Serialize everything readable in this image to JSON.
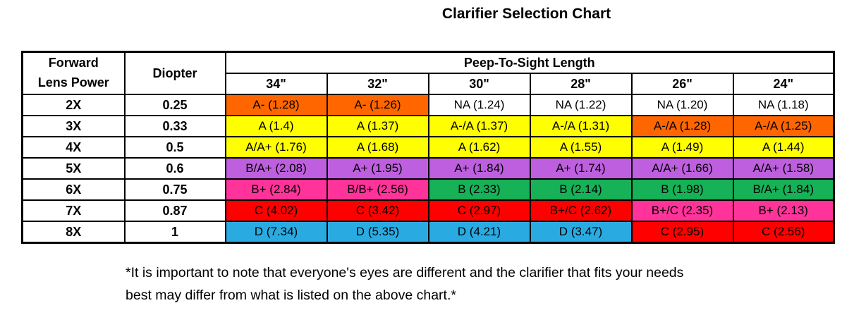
{
  "title": "Clarifier Selection Chart",
  "colors": {
    "orange": "#FF6600",
    "yellow": "#FFFF00",
    "white": "#FFFFFF",
    "purple": "#BE5FDF",
    "pink": "#FF3399",
    "green": "#17B157",
    "red": "#FF0000",
    "blue": "#29ABE2",
    "border": "#000000"
  },
  "chart_data": {
    "type": "table",
    "title": "Clarifier Selection Chart",
    "header": {
      "col1_line1": "Forward",
      "col1_line2": "Lens Power",
      "col2": "Diopter",
      "group": "Peep-To-Sight Length",
      "lengths": [
        "34\"",
        "32\"",
        "30\"",
        "28\"",
        "26\"",
        "24\""
      ]
    },
    "rows": [
      {
        "power": "2X",
        "diopter": "0.25",
        "cells": [
          {
            "label": "A- (1.28)",
            "color": "orange"
          },
          {
            "label": "A- (1.26)",
            "color": "orange"
          },
          {
            "label": "NA (1.24)",
            "color": "white"
          },
          {
            "label": "NA (1.22)",
            "color": "white"
          },
          {
            "label": "NA (1.20)",
            "color": "white"
          },
          {
            "label": "NA (1.18)",
            "color": "white"
          }
        ]
      },
      {
        "power": "3X",
        "diopter": "0.33",
        "cells": [
          {
            "label": "A (1.4)",
            "color": "yellow"
          },
          {
            "label": "A (1.37)",
            "color": "yellow"
          },
          {
            "label": "A-/A (1.37)",
            "color": "yellow"
          },
          {
            "label": "A-/A (1.31)",
            "color": "yellow"
          },
          {
            "label": "A-/A (1.28)",
            "color": "orange"
          },
          {
            "label": "A-/A (1.25)",
            "color": "orange"
          }
        ]
      },
      {
        "power": "4X",
        "diopter": "0.5",
        "cells": [
          {
            "label": "A/A+ (1.76)",
            "color": "yellow"
          },
          {
            "label": "A (1.68)",
            "color": "yellow"
          },
          {
            "label": "A (1.62)",
            "color": "yellow"
          },
          {
            "label": "A (1.55)",
            "color": "yellow"
          },
          {
            "label": "A (1.49)",
            "color": "yellow"
          },
          {
            "label": "A (1.44)",
            "color": "yellow"
          }
        ]
      },
      {
        "power": "5X",
        "diopter": "0.6",
        "cells": [
          {
            "label": "B/A+ (2.08)",
            "color": "purple"
          },
          {
            "label": "A+ (1.95)",
            "color": "purple"
          },
          {
            "label": "A+ (1.84)",
            "color": "purple"
          },
          {
            "label": "A+ (1.74)",
            "color": "purple"
          },
          {
            "label": "A/A+ (1.66)",
            "color": "purple"
          },
          {
            "label": "A/A+ (1.58)",
            "color": "purple"
          }
        ]
      },
      {
        "power": "6X",
        "diopter": "0.75",
        "cells": [
          {
            "label": "B+ (2.84)",
            "color": "pink"
          },
          {
            "label": "B/B+ (2.56)",
            "color": "pink"
          },
          {
            "label": "B (2.33)",
            "color": "green"
          },
          {
            "label": "B (2.14)",
            "color": "green"
          },
          {
            "label": "B (1.98)",
            "color": "green"
          },
          {
            "label": "B/A+ (1.84)",
            "color": "green"
          }
        ]
      },
      {
        "power": "7X",
        "diopter": "0.87",
        "cells": [
          {
            "label": "C (4.02)",
            "color": "red"
          },
          {
            "label": "C (3.42)",
            "color": "red"
          },
          {
            "label": "C (2.97)",
            "color": "red"
          },
          {
            "label": "B+/C (2.62)",
            "color": "red"
          },
          {
            "label": "B+/C (2.35)",
            "color": "pink"
          },
          {
            "label": "B+ (2.13)",
            "color": "pink"
          }
        ]
      },
      {
        "power": "8X",
        "diopter": "1",
        "cells": [
          {
            "label": "D (7.34)",
            "color": "blue"
          },
          {
            "label": "D (5.35)",
            "color": "blue"
          },
          {
            "label": "D (4.21)",
            "color": "blue"
          },
          {
            "label": "D (3.47)",
            "color": "blue"
          },
          {
            "label": "C (2.95)",
            "color": "red"
          },
          {
            "label": "C (2.56)",
            "color": "red"
          }
        ]
      }
    ],
    "footnote_lines": [
      "*It is important to note that everyone's eyes are different and the clarifier that fits your needs",
      "best may differ from what is listed on the above chart.*"
    ]
  }
}
